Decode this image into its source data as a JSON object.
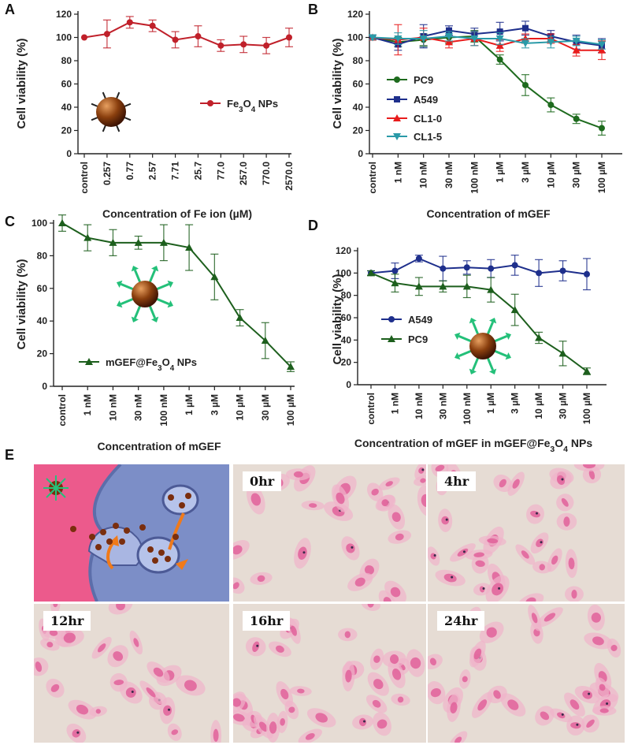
{
  "panels": {
    "A": "A",
    "B": "B",
    "C": "C",
    "D": "D",
    "E": "E"
  },
  "colors": {
    "red": "#c0202a",
    "navy": "#1e2f8c",
    "green": "#1e6b1e",
    "teal": "#2a9aa8",
    "bright_red": "#e81c1c",
    "darkgreen": "#1d5f1d"
  },
  "chart_data": [
    {
      "id": "A",
      "type": "line",
      "title": "",
      "xlabel": "Concentration of Fe ion (µM)",
      "ylabel": "Cell viability (%)",
      "ylim": [
        0,
        120
      ],
      "yticks": [
        0,
        20,
        40,
        60,
        80,
        100,
        120
      ],
      "categories": [
        "control",
        "0.257",
        "0.77",
        "2.57",
        "7.71",
        "25.7",
        "77.0",
        "257.0",
        "770.0",
        "2570.0"
      ],
      "series": [
        {
          "name": "Fe3O4 NPs",
          "values": [
            100,
            103,
            113,
            110,
            98,
            101,
            93,
            94,
            93,
            100
          ],
          "errors": [
            0,
            12,
            5,
            5,
            7,
            9,
            5,
            7,
            7,
            8
          ]
        }
      ]
    },
    {
      "id": "B",
      "type": "line",
      "xlabel": "Concentration of mGEF",
      "ylabel": "Cell viability (%)",
      "ylim": [
        0,
        120
      ],
      "yticks": [
        0,
        20,
        40,
        60,
        80,
        100,
        120
      ],
      "categories": [
        "control",
        "1 nM",
        "10 nM",
        "30 nM",
        "100 nM",
        "1 µM",
        "3 µM",
        "10 µM",
        "30 µM",
        "100 µM"
      ],
      "series": [
        {
          "name": "PC9",
          "values": [
            100,
            96,
            98,
            100,
            101,
            81,
            59,
            42,
            30,
            22
          ],
          "errors": [
            2,
            4,
            5,
            5,
            5,
            4,
            9,
            6,
            4,
            6
          ]
        },
        {
          "name": "A549",
          "values": [
            100,
            94,
            101,
            106,
            103,
            105,
            108,
            101,
            96,
            93
          ],
          "errors": [
            2,
            5,
            10,
            4,
            5,
            8,
            6,
            5,
            6,
            6
          ]
        },
        {
          "name": "CL1-0",
          "values": [
            100,
            98,
            100,
            96,
            99,
            93,
            99,
            99,
            89,
            89
          ],
          "errors": [
            2,
            13,
            8,
            5,
            6,
            5,
            4,
            4,
            5,
            8
          ]
        },
        {
          "name": "CL1-5",
          "values": [
            100,
            99,
            99,
            101,
            99,
            99,
            95,
            96,
            97,
            94
          ],
          "errors": [
            2,
            5,
            7,
            4,
            6,
            5,
            4,
            5,
            4,
            4
          ]
        }
      ]
    },
    {
      "id": "C",
      "type": "line",
      "xlabel": "Concentration of mGEF",
      "ylabel": "Cell viability (%)",
      "ylim": [
        0,
        110
      ],
      "yticks": [
        0,
        20,
        40,
        60,
        80,
        100
      ],
      "categories": [
        "control",
        "1 nM",
        "10 nM",
        "30 nM",
        "100 nM",
        "1 µM",
        "3 µM",
        "10 µM",
        "30 µM",
        "100 µM"
      ],
      "series": [
        {
          "name": "mGEF@Fe3O4 NPs",
          "values": [
            100,
            91,
            88,
            88,
            88,
            85,
            67,
            42,
            28,
            12
          ],
          "errors": [
            5,
            8,
            8,
            4,
            11,
            14,
            14,
            5,
            11,
            3
          ]
        }
      ]
    },
    {
      "id": "D",
      "type": "line",
      "xlabel": "Concentration of mGEF in mGEF@Fe3O4 NPs",
      "ylabel": "Cell viability (%)",
      "ylim": [
        0,
        120
      ],
      "yticks": [
        0,
        20,
        40,
        60,
        80,
        100,
        120
      ],
      "categories": [
        "control",
        "1 nM",
        "10 nM",
        "30 nM",
        "100 nM",
        "1 µM",
        "3 µM",
        "10 µM",
        "30 µM",
        "100 µM"
      ],
      "series": [
        {
          "name": "A549",
          "values": [
            100,
            102,
            113,
            104,
            105,
            104,
            107,
            100,
            102,
            99
          ],
          "errors": [
            2,
            7,
            3,
            11,
            6,
            8,
            9,
            12,
            9,
            14
          ]
        },
        {
          "name": "PC9",
          "values": [
            100,
            91,
            88,
            88,
            88,
            85,
            67,
            42,
            28,
            12
          ],
          "errors": [
            2,
            8,
            8,
            5,
            10,
            11,
            14,
            5,
            11,
            3
          ]
        }
      ]
    }
  ],
  "legend_labels": {
    "A_fe3o4": "Fe3O4 NPs",
    "C_mgef": "mGEF@Fe3O4 NPs"
  },
  "panelE": {
    "time_labels": [
      "0hr",
      "4hr",
      "12hr",
      "16hr",
      "24hr"
    ]
  }
}
